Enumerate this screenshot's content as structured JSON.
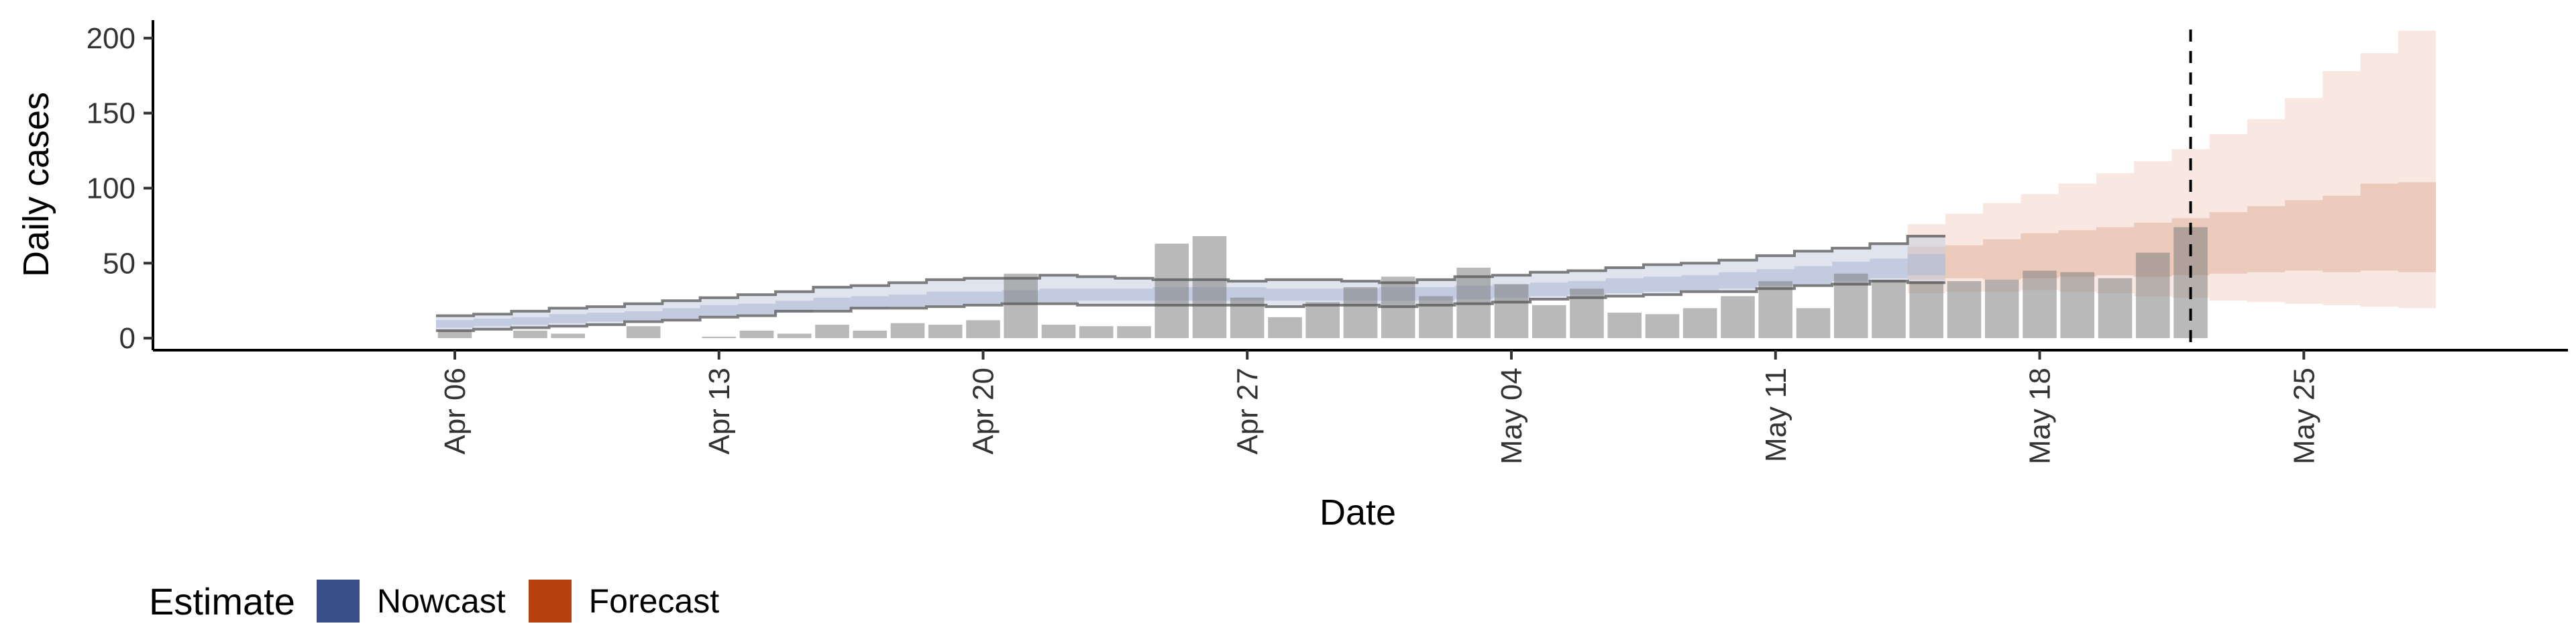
{
  "chart_data": {
    "type": "bar",
    "xlabel": "Date",
    "ylabel": "Daily cases",
    "ylim": [
      -8,
      212
    ],
    "yticks": [
      0,
      50,
      100,
      150,
      200
    ],
    "xlim": [
      "2020-03-29",
      "2020-06-01"
    ],
    "xticks": [
      {
        "date": "2020-04-06",
        "label": "Apr 06"
      },
      {
        "date": "2020-04-13",
        "label": "Apr 13"
      },
      {
        "date": "2020-04-20",
        "label": "Apr 20"
      },
      {
        "date": "2020-04-27",
        "label": "Apr 27"
      },
      {
        "date": "2020-05-04",
        "label": "May 04"
      },
      {
        "date": "2020-05-11",
        "label": "May 11"
      },
      {
        "date": "2020-05-18",
        "label": "May 18"
      },
      {
        "date": "2020-05-25",
        "label": "May 25"
      }
    ],
    "vline_date": "2020-05-22",
    "observed_cases": {
      "start_date": "2020-04-06",
      "values": [
        5,
        0,
        5,
        3,
        0,
        8,
        0,
        1,
        5,
        3,
        9,
        5,
        10,
        9,
        12,
        43,
        9,
        8,
        8,
        63,
        68,
        27,
        14,
        24,
        34,
        41,
        28,
        47,
        36,
        22,
        33,
        17,
        16,
        20,
        28,
        38,
        20,
        43,
        39,
        38,
        38,
        39,
        45,
        44,
        40,
        57,
        74
      ]
    },
    "series": [
      {
        "name": "Nowcast",
        "color": "#3b4f8c",
        "start_date": "2020-04-06",
        "median": [
          9,
          10,
          12,
          13,
          14,
          15,
          17,
          18,
          20,
          21,
          23,
          24,
          25,
          26,
          27,
          28,
          29,
          29,
          29,
          30,
          30,
          29,
          29,
          29,
          29,
          29,
          30,
          30,
          31,
          32,
          34,
          35,
          36,
          37,
          38,
          40,
          42,
          44,
          46,
          48
        ],
        "inner_lower": [
          7,
          8,
          9,
          10,
          11,
          12,
          13,
          15,
          16,
          17,
          19,
          20,
          21,
          22,
          23,
          24,
          24,
          25,
          25,
          25,
          25,
          25,
          25,
          25,
          25,
          25,
          25,
          26,
          27,
          28,
          29,
          30,
          31,
          32,
          33,
          35,
          36,
          38,
          40,
          42
        ],
        "inner_upper": [
          12,
          13,
          14,
          16,
          17,
          18,
          20,
          22,
          23,
          25,
          27,
          28,
          29,
          31,
          31,
          32,
          33,
          33,
          33,
          34,
          34,
          34,
          33,
          33,
          33,
          34,
          34,
          35,
          36,
          37,
          38,
          40,
          41,
          42,
          44,
          46,
          48,
          51,
          53,
          56
        ],
        "outer_lower": [
          5,
          6,
          7,
          8,
          9,
          11,
          12,
          14,
          15,
          18,
          18,
          20,
          20,
          21,
          22,
          23,
          23,
          22,
          22,
          22,
          22,
          22,
          21,
          22,
          22,
          21,
          22,
          23,
          24,
          26,
          27,
          28,
          29,
          31,
          31,
          33,
          35,
          36,
          38,
          37
        ],
        "outer_upper": [
          15,
          16,
          18,
          20,
          21,
          23,
          25,
          27,
          29,
          31,
          34,
          35,
          37,
          39,
          40,
          40,
          42,
          41,
          40,
          39,
          39,
          38,
          39,
          39,
          38,
          37,
          39,
          41,
          42,
          44,
          45,
          47,
          49,
          50,
          52,
          55,
          58,
          60,
          63,
          68
        ]
      },
      {
        "name": "Forecast",
        "color": "#b7410e",
        "start_date": "2020-05-15",
        "median": [
          50,
          51,
          52,
          53,
          54,
          55,
          57,
          58,
          60,
          61,
          62,
          64,
          65,
          66
        ],
        "inner_lower": [
          39,
          40,
          39,
          40,
          41,
          42,
          41,
          42,
          43,
          44,
          45,
          44,
          45,
          44
        ],
        "inner_upper": [
          61,
          62,
          66,
          70,
          72,
          74,
          77,
          80,
          84,
          88,
          92,
          95,
          103,
          104
        ],
        "outer_lower": [
          30,
          31,
          31,
          32,
          31,
          30,
          28,
          27,
          25,
          24,
          23,
          22,
          21,
          20
        ],
        "outer_upper": [
          76,
          83,
          90,
          96,
          103,
          110,
          118,
          126,
          136,
          146,
          160,
          178,
          190,
          205
        ]
      }
    ],
    "legend": {
      "title": "Estimate",
      "position": "bottom-left"
    },
    "grid": false
  }
}
